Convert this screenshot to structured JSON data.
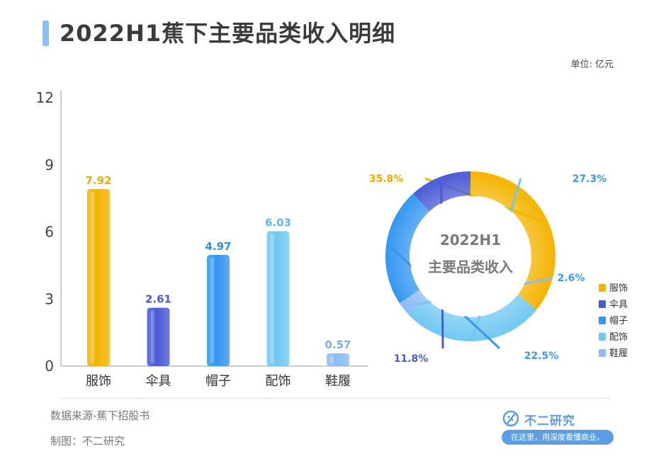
{
  "title": "2022H1蕉下主要品类收入明细",
  "unit": "单位: 亿元",
  "source": "数据来源-蕉下招股书",
  "credit": "制图：不二研究",
  "brand": {
    "name": "不二研究",
    "tagline": "在这里，用深度看懂商业。",
    "color": "#5c9de4"
  },
  "chart_data": [
    {
      "type": "bar",
      "categories": [
        "服饰",
        "伞具",
        "帽子",
        "配饰",
        "鞋履"
      ],
      "values": [
        7.92,
        2.61,
        4.97,
        6.03,
        0.57
      ],
      "ylim": [
        0,
        12
      ],
      "yticks": [
        0,
        3,
        6,
        9,
        12
      ],
      "colors": [
        "#f5b400",
        "#4a5bd6",
        "#3597f0",
        "#72c8f2",
        "#8cbcf5"
      ],
      "label_colors": [
        "#f0ad00",
        "#4a5bd6",
        "#2f8fea",
        "#5bb8ec",
        "#7aaef0"
      ],
      "grid": false
    },
    {
      "type": "pie",
      "donut": true,
      "center_lines": [
        "2022H1",
        "主要品类收入"
      ],
      "categories": [
        "服饰",
        "伞具",
        "帽子",
        "配饰",
        "鞋履"
      ],
      "legend_position": "right",
      "slices": [
        {
          "label": "服饰",
          "value": 35.8,
          "display": "35.8%",
          "color": "#f5b400"
        },
        {
          "label": "配饰",
          "value": 27.3,
          "display": "27.3%",
          "color": "#72c8f2"
        },
        {
          "label": "鞋履",
          "value": 2.6,
          "display": "2.6%",
          "color": "#8cbcf5"
        },
        {
          "label": "帽子",
          "value": 22.5,
          "display": "22.5%",
          "color": "#3597f0"
        },
        {
          "label": "伞具",
          "value": 11.8,
          "display": "11.8%",
          "color": "#4a5bd6"
        }
      ]
    }
  ]
}
